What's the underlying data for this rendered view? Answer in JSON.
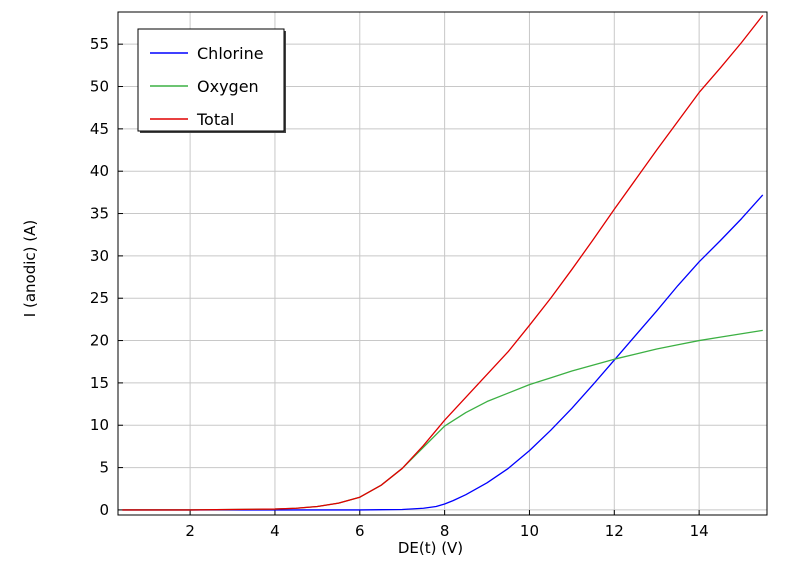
{
  "chart_data": {
    "type": "line",
    "xlabel": "DE(t) (V)",
    "ylabel": "I (anodic) (A)",
    "xlim": [
      0.3,
      15.6
    ],
    "ylim": [
      -0.6,
      58.8
    ],
    "xticks": [
      2,
      4,
      6,
      8,
      10,
      12,
      14
    ],
    "yticks": [
      0,
      5,
      10,
      15,
      20,
      25,
      30,
      35,
      40,
      45,
      50,
      55
    ],
    "grid": true,
    "legend_position": "top-left",
    "series": [
      {
        "name": "Chlorine",
        "color": "#0000ff",
        "x": [
          0.4,
          2,
          4,
          6,
          7,
          7.5,
          7.8,
          8.0,
          8.2,
          8.5,
          9.0,
          9.5,
          10.0,
          10.5,
          11.0,
          11.5,
          12.0,
          12.5,
          13.0,
          13.5,
          14.0,
          14.5,
          15.0,
          15.5
        ],
        "y": [
          0,
          0,
          0,
          0,
          0.05,
          0.2,
          0.4,
          0.7,
          1.1,
          1.8,
          3.2,
          4.9,
          7.0,
          9.4,
          12.0,
          14.8,
          17.7,
          20.6,
          23.5,
          26.5,
          29.3,
          31.8,
          34.4,
          37.2
        ]
      },
      {
        "name": "Oxygen",
        "color": "#3cb043",
        "x": [
          0.4,
          2,
          4,
          4.5,
          5.0,
          5.5,
          6.0,
          6.5,
          7.0,
          7.5,
          8.0,
          8.5,
          9.0,
          9.5,
          10.0,
          10.5,
          11.0,
          11.5,
          12.0,
          12.5,
          13.0,
          13.5,
          14.0,
          14.5,
          15.0,
          15.5
        ],
        "y": [
          0,
          0,
          0.1,
          0.2,
          0.4,
          0.8,
          1.5,
          2.9,
          4.9,
          7.4,
          9.9,
          11.5,
          12.8,
          13.8,
          14.8,
          15.6,
          16.4,
          17.1,
          17.8,
          18.4,
          19.0,
          19.5,
          20.0,
          20.4,
          20.8,
          21.2
        ]
      },
      {
        "name": "Total",
        "color": "#e00000",
        "x": [
          0.4,
          2,
          4,
          4.5,
          5.0,
          5.5,
          6.0,
          6.5,
          7.0,
          7.5,
          8.0,
          8.5,
          9.0,
          9.5,
          10.0,
          10.5,
          11.0,
          11.5,
          12.0,
          12.5,
          13.0,
          13.5,
          14.0,
          14.5,
          15.0,
          15.5
        ],
        "y": [
          0,
          0,
          0.1,
          0.2,
          0.4,
          0.8,
          1.5,
          2.9,
          4.9,
          7.6,
          10.6,
          13.3,
          16.0,
          18.7,
          21.8,
          25.0,
          28.4,
          31.9,
          35.5,
          39.0,
          42.5,
          45.9,
          49.3,
          52.2,
          55.2,
          58.4
        ]
      }
    ]
  }
}
